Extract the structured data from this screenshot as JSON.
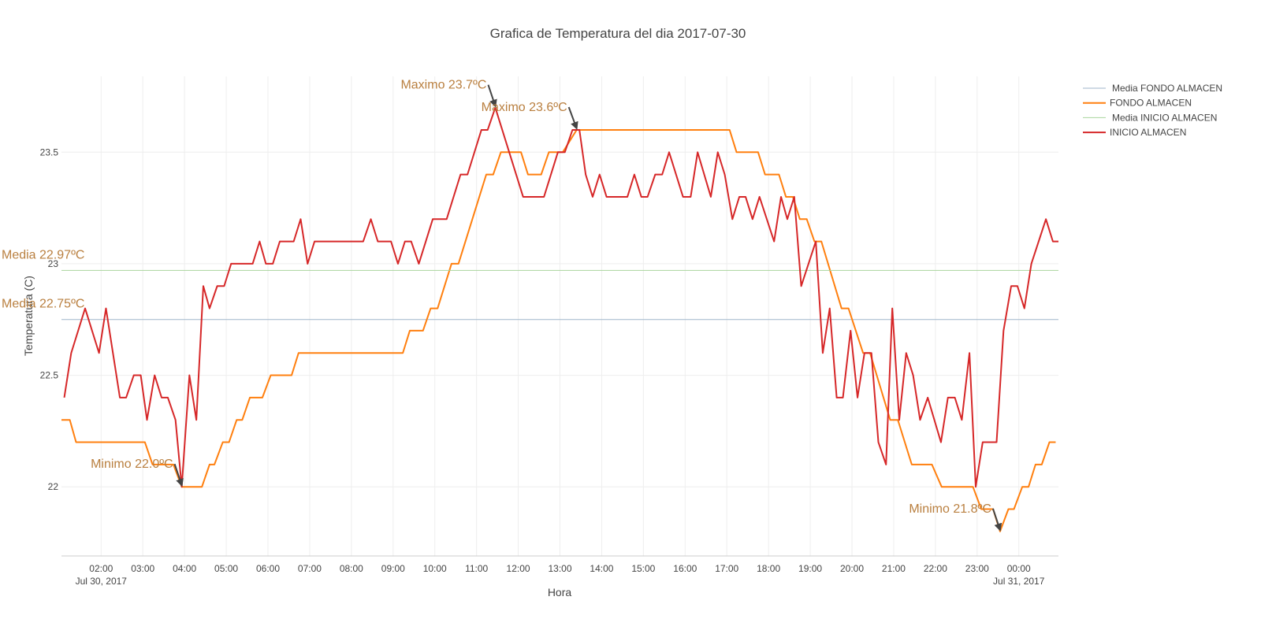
{
  "chart_data": {
    "type": "line",
    "title": "Grafica de Temperatura del dia 2017-07-30",
    "x_label": "Hora",
    "y_label": "Temperatura (C)",
    "xlim": [
      "2017-07-30 01:03",
      "2017-07-31 00:57"
    ],
    "ylim": [
      21.69,
      23.84
    ],
    "yticks": [
      22,
      22.5,
      23,
      23.5
    ],
    "xticks": [
      {
        "value": "2017-07-30 02:00",
        "label": "02:00",
        "sublabel": "Jul 30, 2017"
      },
      {
        "value": "2017-07-30 03:00",
        "label": "03:00"
      },
      {
        "value": "2017-07-30 04:00",
        "label": "04:00"
      },
      {
        "value": "2017-07-30 05:00",
        "label": "05:00"
      },
      {
        "value": "2017-07-30 06:00",
        "label": "06:00"
      },
      {
        "value": "2017-07-30 07:00",
        "label": "07:00"
      },
      {
        "value": "2017-07-30 08:00",
        "label": "08:00"
      },
      {
        "value": "2017-07-30 09:00",
        "label": "09:00"
      },
      {
        "value": "2017-07-30 10:00",
        "label": "10:00"
      },
      {
        "value": "2017-07-30 11:00",
        "label": "11:00"
      },
      {
        "value": "2017-07-30 12:00",
        "label": "12:00"
      },
      {
        "value": "2017-07-30 13:00",
        "label": "13:00"
      },
      {
        "value": "2017-07-30 14:00",
        "label": "14:00"
      },
      {
        "value": "2017-07-30 15:00",
        "label": "15:00"
      },
      {
        "value": "2017-07-30 16:00",
        "label": "16:00"
      },
      {
        "value": "2017-07-30 17:00",
        "label": "17:00"
      },
      {
        "value": "2017-07-30 18:00",
        "label": "18:00"
      },
      {
        "value": "2017-07-30 19:00",
        "label": "19:00"
      },
      {
        "value": "2017-07-30 20:00",
        "label": "20:00"
      },
      {
        "value": "2017-07-30 21:00",
        "label": "21:00"
      },
      {
        "value": "2017-07-30 22:00",
        "label": "22:00"
      },
      {
        "value": "2017-07-30 23:00",
        "label": "23:00"
      },
      {
        "value": "2017-07-31 00:00",
        "label": "00:00",
        "sublabel": "Jul 31, 2017"
      }
    ],
    "grid": true,
    "legend": "right",
    "series": [
      {
        "name": "Media FONDO ALMACEN",
        "color": "#9fb6cb",
        "width": 1,
        "x": [
          "2017-07-30 01:03",
          "2017-07-31 00:57"
        ],
        "values": [
          22.75,
          22.75
        ]
      },
      {
        "name": "FONDO ALMACEN",
        "color": "#ff7f0e",
        "width": 2,
        "x": [
          "2017-07-30 01:03",
          "2017-07-30 01:15",
          "2017-07-30 01:24",
          "2017-07-30 03:03",
          "2017-07-30 03:14",
          "2017-07-30 03:44",
          "2017-07-30 03:56",
          "2017-07-30 04:25",
          "2017-07-30 04:36",
          "2017-07-30 04:43",
          "2017-07-30 04:55",
          "2017-07-30 05:04",
          "2017-07-30 05:15",
          "2017-07-30 05:23",
          "2017-07-30 05:34",
          "2017-07-30 05:52",
          "2017-07-30 06:04",
          "2017-07-30 06:34",
          "2017-07-30 06:44",
          "2017-07-30 09:14",
          "2017-07-30 09:24",
          "2017-07-30 09:43",
          "2017-07-30 09:54",
          "2017-07-30 10:04",
          "2017-07-30 10:24",
          "2017-07-30 10:34",
          "2017-07-30 11:14",
          "2017-07-30 11:24",
          "2017-07-30 11:35",
          "2017-07-30 12:04",
          "2017-07-30 12:14",
          "2017-07-30 12:33",
          "2017-07-30 12:44",
          "2017-07-30 13:04",
          "2017-07-30 13:24",
          "2017-07-30 17:04",
          "2017-07-30 17:14",
          "2017-07-30 17:45",
          "2017-07-30 17:55",
          "2017-07-30 18:15",
          "2017-07-30 18:25",
          "2017-07-30 18:35",
          "2017-07-30 18:45",
          "2017-07-30 18:55",
          "2017-07-30 19:06",
          "2017-07-30 19:16",
          "2017-07-30 19:45",
          "2017-07-30 19:55",
          "2017-07-30 20:16",
          "2017-07-30 20:26",
          "2017-07-30 20:55",
          "2017-07-30 21:06",
          "2017-07-30 21:26",
          "2017-07-30 21:55",
          "2017-07-30 22:09",
          "2017-07-30 22:54",
          "2017-07-30 23:06",
          "2017-07-30 23:23",
          "2017-07-30 23:33",
          "2017-07-30 23:45",
          "2017-07-30 23:53",
          "2017-07-31 00:05",
          "2017-07-31 00:14",
          "2017-07-31 00:24",
          "2017-07-31 00:33",
          "2017-07-31 00:44",
          "2017-07-31 00:53"
        ],
        "values": [
          22.3,
          22.3,
          22.2,
          22.2,
          22.1,
          22.1,
          22.0,
          22.0,
          22.1,
          22.1,
          22.2,
          22.2,
          22.3,
          22.3,
          22.4,
          22.4,
          22.5,
          22.5,
          22.6,
          22.6,
          22.7,
          22.7,
          22.8,
          22.8,
          23.0,
          23.0,
          23.4,
          23.4,
          23.5,
          23.5,
          23.4,
          23.4,
          23.5,
          23.5,
          23.6,
          23.6,
          23.5,
          23.5,
          23.4,
          23.4,
          23.3,
          23.3,
          23.2,
          23.2,
          23.1,
          23.1,
          22.8,
          22.8,
          22.6,
          22.6,
          22.3,
          22.3,
          22.1,
          22.1,
          22.0,
          22.0,
          21.9,
          21.9,
          21.8,
          21.9,
          21.9,
          22.0,
          22.0,
          22.1,
          22.1,
          22.2,
          22.2
        ]
      },
      {
        "name": "Media INICIO ALMACEN",
        "color": "#a9d49d",
        "width": 1,
        "x": [
          "2017-07-30 01:03",
          "2017-07-31 00:57"
        ],
        "values": [
          22.97,
          22.97
        ]
      },
      {
        "name": "INICIO ALMACEN",
        "color": "#d62728",
        "width": 2,
        "x": [
          "2017-07-30 01:07",
          "2017-07-30 01:17",
          "2017-07-30 01:37",
          "2017-07-30 01:57",
          "2017-07-30 02:07",
          "2017-07-30 02:27",
          "2017-07-30 02:36",
          "2017-07-30 02:47",
          "2017-07-30 02:57",
          "2017-07-30 03:06",
          "2017-07-30 03:17",
          "2017-07-30 03:27",
          "2017-07-30 03:36",
          "2017-07-30 03:47",
          "2017-07-30 03:56",
          "2017-07-30 04:07",
          "2017-07-30 04:17",
          "2017-07-30 04:27",
          "2017-07-30 04:36",
          "2017-07-30 04:47",
          "2017-07-30 04:57",
          "2017-07-30 05:07",
          "2017-07-30 05:38",
          "2017-07-30 05:48",
          "2017-07-30 05:57",
          "2017-07-30 06:07",
          "2017-07-30 06:17",
          "2017-07-30 06:37",
          "2017-07-30 06:47",
          "2017-07-30 06:57",
          "2017-07-30 07:07",
          "2017-07-30 08:17",
          "2017-07-30 08:28",
          "2017-07-30 08:38",
          "2017-07-30 08:57",
          "2017-07-30 09:07",
          "2017-07-30 09:17",
          "2017-07-30 09:26",
          "2017-07-30 09:37",
          "2017-07-30 09:57",
          "2017-07-30 10:17",
          "2017-07-30 10:37",
          "2017-07-30 10:47",
          "2017-07-30 11:07",
          "2017-07-30 11:16",
          "2017-07-30 11:27",
          "2017-07-30 12:07",
          "2017-07-30 12:37",
          "2017-07-30 12:57",
          "2017-07-30 13:07",
          "2017-07-30 13:18",
          "2017-07-30 13:28",
          "2017-07-30 13:37",
          "2017-07-30 13:47",
          "2017-07-30 13:57",
          "2017-07-30 14:07",
          "2017-07-30 14:37",
          "2017-07-30 14:47",
          "2017-07-30 14:57",
          "2017-07-30 15:06",
          "2017-07-30 15:17",
          "2017-07-30 15:27",
          "2017-07-30 15:37",
          "2017-07-30 15:57",
          "2017-07-30 16:08",
          "2017-07-30 16:18",
          "2017-07-30 16:37",
          "2017-07-30 16:47",
          "2017-07-30 16:57",
          "2017-07-30 17:08",
          "2017-07-30 17:18",
          "2017-07-30 17:27",
          "2017-07-30 17:37",
          "2017-07-30 17:47",
          "2017-07-30 18:08",
          "2017-07-30 18:18",
          "2017-07-30 18:27",
          "2017-07-30 18:37",
          "2017-07-30 18:47",
          "2017-07-30 19:08",
          "2017-07-30 19:18",
          "2017-07-30 19:28",
          "2017-07-30 19:38",
          "2017-07-30 19:47",
          "2017-07-30 19:58",
          "2017-07-30 20:08",
          "2017-07-30 20:18",
          "2017-07-30 20:28",
          "2017-07-30 20:38",
          "2017-07-30 20:49",
          "2017-07-30 20:58",
          "2017-07-30 21:08",
          "2017-07-30 21:18",
          "2017-07-30 21:28",
          "2017-07-30 21:38",
          "2017-07-30 21:49",
          "2017-07-30 22:08",
          "2017-07-30 22:18",
          "2017-07-30 22:28",
          "2017-07-30 22:38",
          "2017-07-30 22:49",
          "2017-07-30 22:58",
          "2017-07-30 23:08",
          "2017-07-30 23:28",
          "2017-07-30 23:38",
          "2017-07-30 23:49",
          "2017-07-30 23:58",
          "2017-07-31 00:08",
          "2017-07-31 00:18",
          "2017-07-31 00:39",
          "2017-07-31 00:49",
          "2017-07-31 00:57"
        ],
        "values": [
          22.4,
          22.6,
          22.8,
          22.6,
          22.8,
          22.4,
          22.4,
          22.5,
          22.5,
          22.3,
          22.5,
          22.4,
          22.4,
          22.3,
          22.0,
          22.5,
          22.3,
          22.9,
          22.8,
          22.9,
          22.9,
          23.0,
          23.0,
          23.1,
          23.0,
          23.0,
          23.1,
          23.1,
          23.2,
          23.0,
          23.1,
          23.1,
          23.2,
          23.1,
          23.1,
          23.0,
          23.1,
          23.1,
          23.0,
          23.2,
          23.2,
          23.4,
          23.4,
          23.6,
          23.6,
          23.7,
          23.3,
          23.3,
          23.5,
          23.5,
          23.6,
          23.6,
          23.4,
          23.3,
          23.4,
          23.3,
          23.3,
          23.4,
          23.3,
          23.3,
          23.4,
          23.4,
          23.5,
          23.3,
          23.3,
          23.5,
          23.3,
          23.5,
          23.4,
          23.2,
          23.3,
          23.3,
          23.2,
          23.3,
          23.1,
          23.3,
          23.2,
          23.3,
          22.9,
          23.1,
          22.6,
          22.8,
          22.4,
          22.4,
          22.7,
          22.4,
          22.6,
          22.6,
          22.2,
          22.1,
          22.8,
          22.3,
          22.6,
          22.5,
          22.3,
          22.4,
          22.2,
          22.4,
          22.4,
          22.3,
          22.6,
          22.0,
          22.2,
          22.2,
          22.7,
          22.9,
          22.9,
          22.8,
          23.0,
          23.2,
          23.1,
          23.1
        ]
      }
    ],
    "annotation_color": "#b97f3f",
    "annotations": [
      {
        "text": "Media 22.97ºC",
        "y": 22.97
      },
      {
        "text": "Media 22.75ºC",
        "y": 22.75
      },
      {
        "text": "Maximo 23.7ºC",
        "x": "2017-07-30 11:27",
        "y": 23.7
      },
      {
        "text": "Minimo 22.0ºC",
        "x": "2017-07-30 03:56",
        "y": 22.0
      },
      {
        "text": "Maximo 23.6ºC",
        "x": "2017-07-30 13:24",
        "y": 23.6
      },
      {
        "text": "Minimo 21.8ºC",
        "x": "2017-07-30 23:33",
        "y": 21.8
      }
    ]
  }
}
